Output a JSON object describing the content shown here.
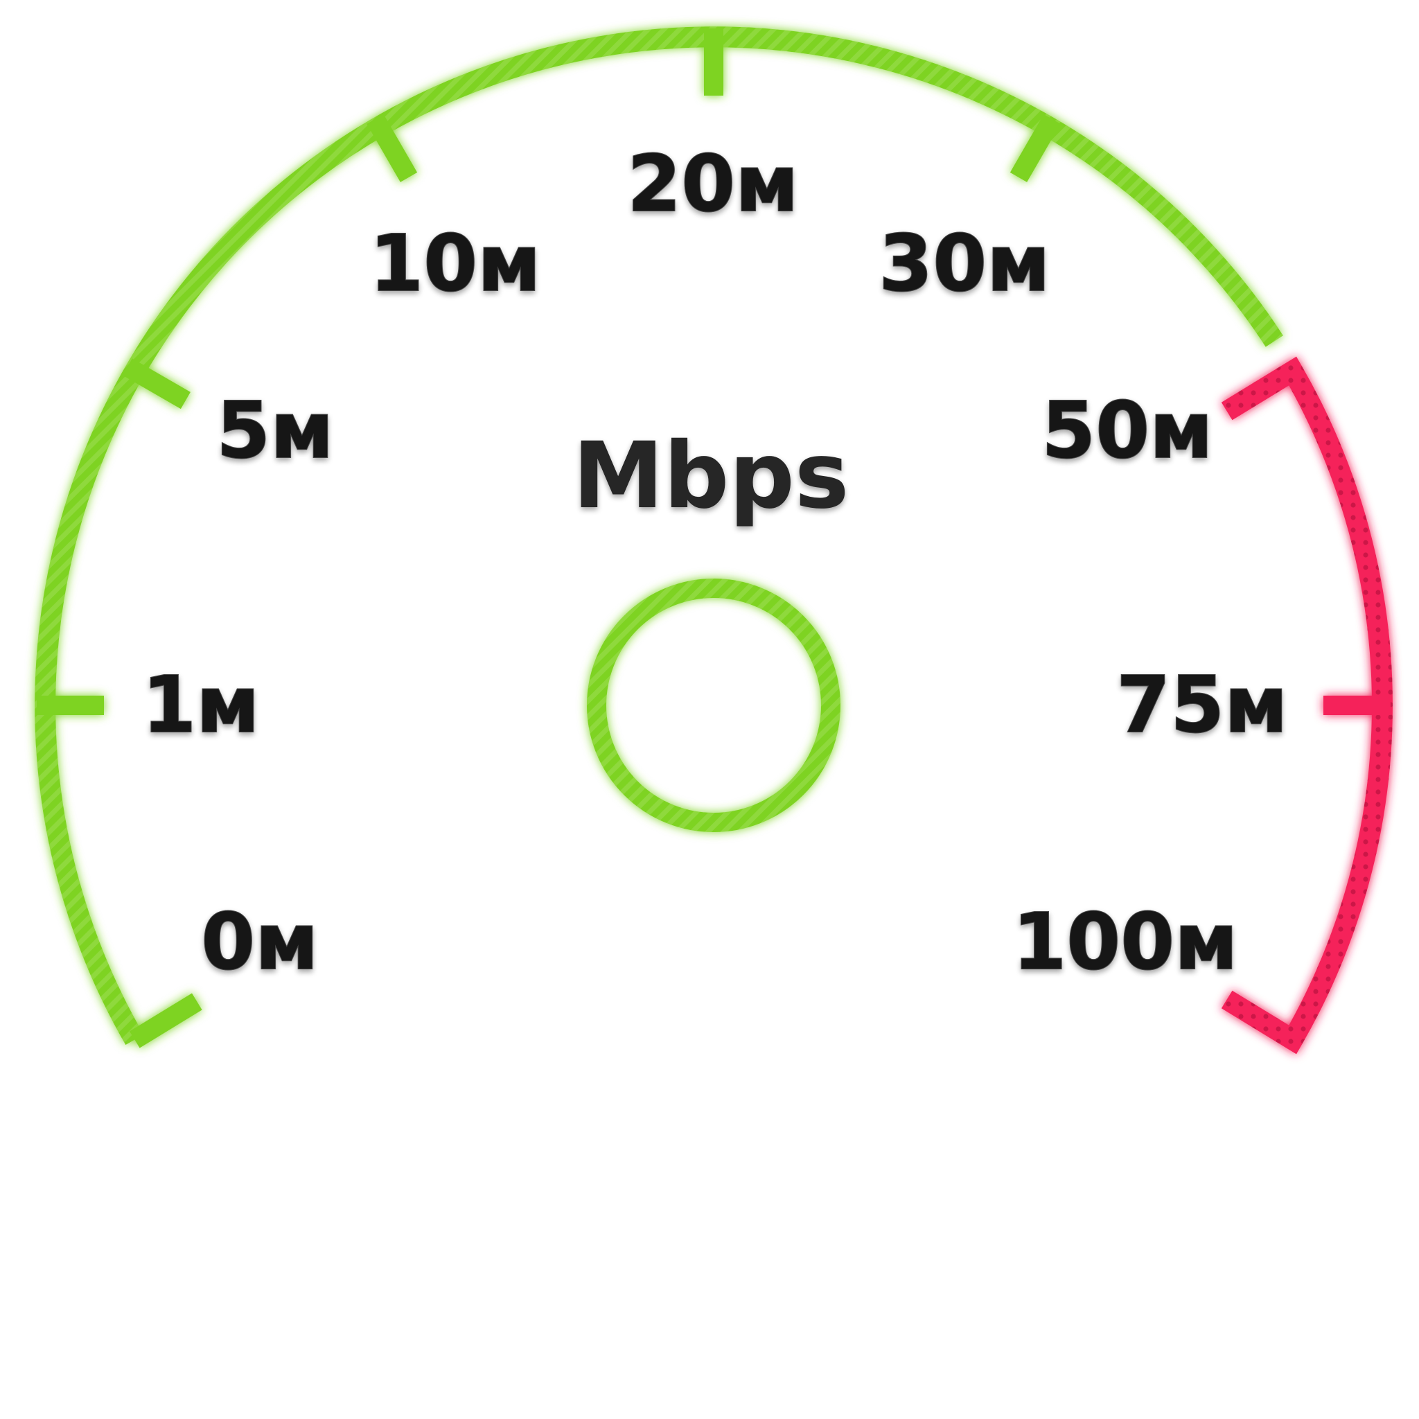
{
  "gauge": {
    "unit_label": "Mbps",
    "ticks": [
      {
        "label": "0м",
        "zone": "normal"
      },
      {
        "label": "1м",
        "zone": "normal"
      },
      {
        "label": "5м",
        "zone": "normal"
      },
      {
        "label": "10м",
        "zone": "normal"
      },
      {
        "label": "20м",
        "zone": "normal"
      },
      {
        "label": "30м",
        "zone": "normal"
      },
      {
        "label": "50м",
        "zone": "high"
      },
      {
        "label": "75м",
        "zone": "high"
      },
      {
        "label": "100м",
        "zone": "high"
      }
    ],
    "colors": {
      "normal_zone": "#7ed321",
      "normal_zone_edge": "#5fae0c",
      "normal_glow": "#9be83a",
      "high_zone": "#f5245a",
      "high_zone_edge": "#c8103f",
      "high_glow": "#ff5c85",
      "label_text": "#141414"
    }
  }
}
